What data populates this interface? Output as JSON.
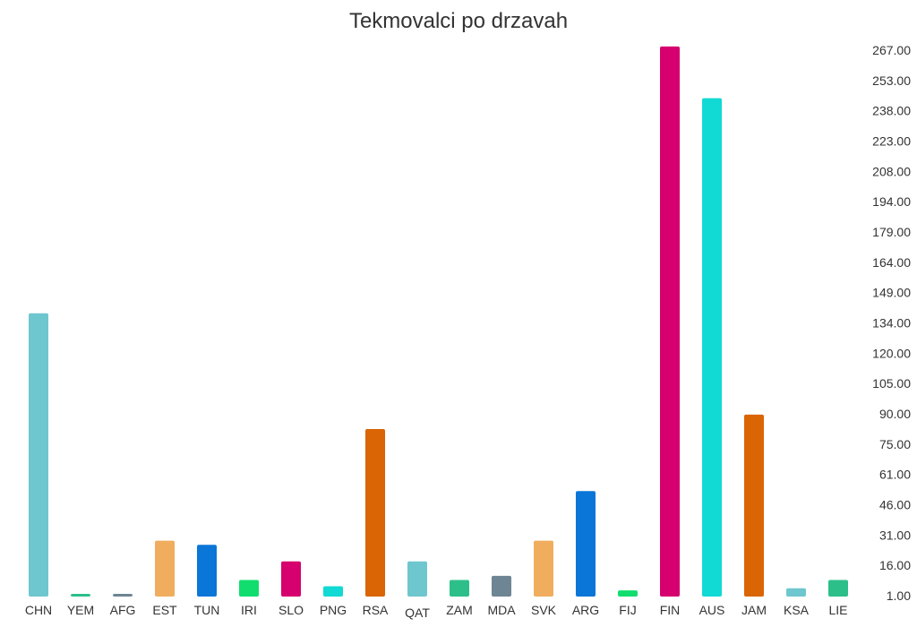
{
  "chart_data": {
    "type": "bar",
    "title": "Tekmovalci po drzavah",
    "xlabel": "",
    "ylabel": "",
    "ylim": [
      1,
      270
    ],
    "y_axis_position": "right",
    "grid": false,
    "legend": "none",
    "y_ticks": [
      "1.00",
      "16.00",
      "31.00",
      "46.00",
      "61.00",
      "75.00",
      "90.00",
      "105.00",
      "120.00",
      "134.00",
      "149.00",
      "164.00",
      "179.00",
      "194.00",
      "208.00",
      "223.00",
      "238.00",
      "253.00",
      "267.00"
    ],
    "categories": [
      "CHN",
      "YEM",
      "AFG",
      "EST",
      "TUN",
      "IRI",
      "SLO",
      "PNG",
      "RSA",
      "QAT",
      "ZAM",
      "MDA",
      "SVK",
      "ARG",
      "FIJ",
      "FIN",
      "AUS",
      "JAM",
      "KSA",
      "LIE"
    ],
    "values": [
      138,
      2,
      2,
      28,
      26,
      9,
      18,
      6,
      82,
      18,
      9,
      11,
      28,
      52,
      4,
      267,
      242,
      89,
      5,
      9
    ],
    "colors": [
      "#6ec6cf",
      "#2cbf8a",
      "#6e8593",
      "#f0ad5e",
      "#0a76d8",
      "#11dd6e",
      "#d6006f",
      "#11d9d4",
      "#d96504",
      "#6ec6cf",
      "#2cbf8a",
      "#6e8593",
      "#f0ad5e",
      "#0a76d8",
      "#11dd6e",
      "#d6006f",
      "#11d9d4",
      "#d96504",
      "#6ec6cf",
      "#2cbf8a"
    ]
  }
}
